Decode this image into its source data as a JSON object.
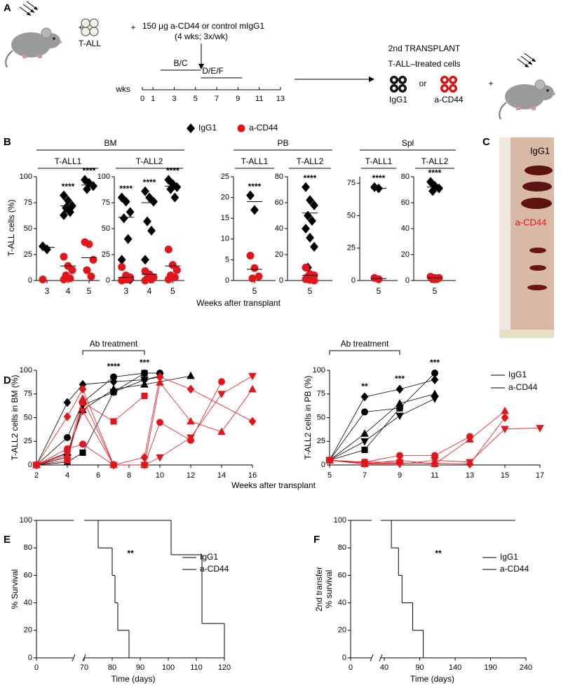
{
  "panel_labels": [
    "A",
    "B",
    "C",
    "D",
    "E",
    "F"
  ],
  "schematic": {
    "plus": "+",
    "cells_label": "T-ALL",
    "treatment": "150 μg a-CD44 or control mIgG1",
    "schedule": "(4 wks; 3x/wk)",
    "bars": [
      {
        "label": "B/C",
        "weeks": [
          1.7,
          5.5
        ]
      },
      {
        "label": "D/E/F",
        "weeks": [
          5.5,
          9.4
        ]
      }
    ],
    "timeline_unit": "wks",
    "timeline_ticks": [
      0,
      1,
      3,
      5,
      7,
      9,
      11,
      13
    ],
    "transplant_title": "2nd TRANSPLANT",
    "transplant_subtitle": "T-ALL–treated cells",
    "option_1": "IgG1",
    "or": "or",
    "option_2": "a-CD44"
  },
  "photo": {
    "label_1": "IgG1",
    "label_2": "a-CD44"
  },
  "chart_data": [
    {
      "type": "strip",
      "ylabel": "T-ALL cells (%)",
      "xlabel": "Weeks after transplant",
      "series": [
        {
          "name": "IgG1",
          "color": "#000000",
          "marker": "diamond"
        },
        {
          "name": "a-CD44",
          "color": "#e3151b",
          "marker": "circle"
        }
      ],
      "groups": [
        {
          "name": "BM",
          "panels": [
            {
              "title": "T-ALL1",
              "categories": [
                3,
                4,
                5
              ],
              "ylim": [
                0,
                100
              ],
              "yticks": [
                0,
                25,
                50,
                75,
                100
              ],
              "values": [
                [
                  [
                    33,
                    30
                  ],
                  [
                    82,
                    77,
                    72,
                    70,
                    66,
                    63
                  ],
                  [
                    97,
                    94,
                    91,
                    88
                  ]
                ],
                [
                  [
                    1
                  ],
                  [
                    23,
                    14,
                    10,
                    5,
                    2,
                    1
                  ],
                  [
                    37,
                    35,
                    20,
                    10,
                    4
                  ]
                ]
              ],
              "means": [
                [
                  32,
                  72,
                  92
                ],
                [
                  null,
                  14,
                  22
                ]
              ],
              "annotations": [
                null,
                "****",
                "****"
              ]
            },
            {
              "title": "T-ALL2",
              "categories": [
                3,
                4,
                5
              ],
              "ylim": [
                0,
                100
              ],
              "yticks": [
                0,
                25,
                50,
                75,
                100
              ],
              "values": [
                [
                  [
                    80,
                    76,
                    66,
                    60,
                    40,
                    20,
                    3,
                    1
                  ],
                  [
                    86,
                    80,
                    76,
                    57,
                    48,
                    20,
                    3
                  ],
                  [
                    97,
                    93,
                    90,
                    88,
                    80
                  ]
                ],
                [
                  [
                    13,
                    5,
                    3,
                    1,
                    1,
                    0
                  ],
                  [
                    9,
                    6,
                    3,
                    2,
                    1,
                    0
                  ],
                  [
                    30,
                    15,
                    10,
                    5,
                    3,
                    1
                  ]
                ]
              ],
              "means": [
                [
                  61,
                  75,
                  91
                ],
                [
                  3,
                  6,
                  14
                ]
              ],
              "annotations": [
                "****",
                "****",
                "****"
              ]
            }
          ]
        },
        {
          "name": "PB",
          "panels": [
            {
              "title": "T-ALL1",
              "categories": [
                5
              ],
              "ylim": [
                0,
                25
              ],
              "yticks": [
                0,
                5,
                10,
                15,
                20,
                25
              ],
              "values": [
                [
                  [
                    20.5,
                    17
                  ]
                ],
                [
                  [
                    6,
                    3,
                    1,
                    0.5
                  ]
                ]
              ],
              "means": [
                [
                  19
                ],
                [
                  2.7
                ]
              ],
              "annotations": [
                "****"
              ]
            },
            {
              "title": "T-ALL2",
              "categories": [
                5
              ],
              "ylim": [
                0,
                80
              ],
              "yticks": [
                0,
                20,
                40,
                60,
                80
              ],
              "values": [
                [
                  [
                    72,
                    62,
                    58,
                    50,
                    46,
                    40,
                    33,
                    26,
                    10
                  ]
                ],
                [
                  [
                    10,
                    5,
                    4,
                    3,
                    2,
                    1,
                    0.5,
                    0
                  ]
                ]
              ],
              "means": [
                [
                  52
                ],
                [
                  4
                ]
              ],
              "annotations": [
                "****"
              ]
            }
          ]
        },
        {
          "name": "Spl",
          "panels": [
            {
              "title": "T-ALL1",
              "categories": [
                5
              ],
              "ylim": [
                0,
                80
              ],
              "yticks": [
                0,
                25,
                50,
                75
              ],
              "values": [
                [
                  [
                    72,
                    71
                  ]
                ],
                [
                  [
                    2,
                    1
                  ]
                ]
              ],
              "means": [
                [
                  71
                ],
                [
                  1.5
                ]
              ],
              "annotations": [
                "****"
              ]
            },
            {
              "title": "T-ALL2",
              "categories": [
                5
              ],
              "ylim": [
                0,
                80
              ],
              "yticks": [
                0,
                20,
                40,
                60,
                80
              ],
              "values": [
                [
                  [
                    76,
                    73,
                    71,
                    69
                  ]
                ],
                [
                  [
                    3,
                    2,
                    2,
                    1,
                    1
                  ]
                ]
              ],
              "means": [
                [
                  72
                ],
                [
                  2
                ]
              ],
              "annotations": [
                "****"
              ]
            }
          ]
        }
      ]
    },
    {
      "type": "line",
      "ylabel": "T-ALL2 cells in BM (%)",
      "xlabel": "Weeks after transplant",
      "xlim": [
        2,
        16
      ],
      "xticks": [
        2,
        4,
        6,
        8,
        10,
        12,
        14,
        16
      ],
      "ylim": [
        0,
        100
      ],
      "yticks": [
        0,
        25,
        50,
        75,
        100
      ],
      "bracket": {
        "label": "Ab treatment",
        "x": [
          5,
          9
        ]
      },
      "annotations": [
        {
          "x": 7,
          "label": "****"
        },
        {
          "x": 9,
          "label": "***"
        }
      ],
      "lines": [
        {
          "color": "#000000",
          "marker": "diamond",
          "x": [
            2,
            4,
            5,
            7,
            9,
            10
          ],
          "values": [
            0,
            66,
            85,
            88,
            90,
            93
          ]
        },
        {
          "color": "#000000",
          "marker": "circle",
          "x": [
            2,
            4,
            5,
            7,
            9,
            10
          ],
          "values": [
            0,
            29,
            66,
            93,
            97,
            97
          ]
        },
        {
          "color": "#000000",
          "marker": "square",
          "x": [
            2,
            4,
            5,
            7,
            9
          ],
          "values": [
            0,
            3,
            13,
            77,
            97
          ]
        },
        {
          "color": "#000000",
          "marker": "triangle",
          "x": [
            2,
            4,
            5,
            7,
            9,
            12
          ],
          "values": [
            0,
            13,
            58,
            80,
            85,
            94
          ]
        },
        {
          "color": "#000000",
          "marker": "triangle-down",
          "x": [
            2,
            4,
            5,
            7,
            9,
            10
          ],
          "values": [
            0,
            8,
            63,
            77,
            90,
            94
          ]
        },
        {
          "color": "#e3151b",
          "marker": "diamond",
          "x": [
            2,
            4,
            5,
            7,
            9,
            10,
            12,
            16
          ],
          "values": [
            0,
            51,
            80,
            0,
            8,
            93,
            80,
            46
          ]
        },
        {
          "color": "#e3151b",
          "marker": "circle",
          "x": [
            2,
            4,
            5,
            7,
            9,
            10,
            12,
            14
          ],
          "values": [
            0,
            17,
            22,
            0,
            0,
            45,
            26,
            88
          ]
        },
        {
          "color": "#e3151b",
          "marker": "square",
          "x": [
            2,
            4,
            5,
            7,
            9
          ],
          "values": [
            0,
            5,
            66,
            46,
            73
          ]
        },
        {
          "color": "#e3151b",
          "marker": "triangle",
          "x": [
            2,
            4,
            5,
            7,
            9,
            10,
            12,
            14,
            16
          ],
          "values": [
            0,
            10,
            70,
            0,
            0,
            87,
            46,
            35,
            80
          ]
        },
        {
          "color": "#e3151b",
          "marker": "triangle-down",
          "x": [
            2,
            4,
            5,
            7,
            9,
            10,
            12,
            14,
            16
          ],
          "values": [
            0,
            12,
            57,
            0,
            0,
            8,
            29,
            75,
            94
          ]
        }
      ]
    },
    {
      "type": "line",
      "ylabel": "T-ALL2 cells in PB (%)",
      "xlim": [
        5,
        17
      ],
      "xticks": [
        5,
        7,
        9,
        11,
        13,
        15,
        17
      ],
      "ylim": [
        0,
        100
      ],
      "yticks": [
        0,
        25,
        50,
        75,
        100
      ],
      "bracket": {
        "label": "Ab treatment",
        "x": [
          5,
          9
        ]
      },
      "annotations": [
        {
          "x": 7,
          "label": "**"
        },
        {
          "x": 9,
          "label": "***"
        },
        {
          "x": 11,
          "label": "***"
        }
      ],
      "series": [
        {
          "name": "IgG1",
          "color": "#000000"
        },
        {
          "name": "a-CD44",
          "color": "#e3151b"
        }
      ],
      "legend": "upper right",
      "lines": [
        {
          "color": "#000000",
          "marker": "diamond",
          "x": [
            5,
            7,
            9,
            11
          ],
          "values": [
            5,
            72,
            80,
            90
          ]
        },
        {
          "color": "#000000",
          "marker": "circle",
          "x": [
            5,
            7,
            9,
            11
          ],
          "values": [
            5,
            56,
            60,
            97
          ]
        },
        {
          "color": "#000000",
          "marker": "triangle",
          "x": [
            5,
            7,
            9,
            11
          ],
          "values": [
            5,
            33,
            65,
            75
          ]
        },
        {
          "color": "#000000",
          "marker": "triangle-down",
          "x": [
            5,
            7,
            9,
            11
          ],
          "values": [
            5,
            25,
            52,
            70
          ]
        },
        {
          "color": "#000000",
          "marker": "square",
          "x": [
            5,
            7,
            9
          ],
          "values": [
            5,
            16,
            60
          ]
        },
        {
          "color": "#e3151b",
          "marker": "diamond",
          "x": [
            5,
            7,
            9,
            11,
            13,
            15
          ],
          "values": [
            5,
            2,
            2,
            2,
            1,
            50
          ]
        },
        {
          "color": "#e3151b",
          "marker": "circle",
          "x": [
            5,
            7,
            9,
            11,
            13
          ],
          "values": [
            5,
            3,
            10,
            10,
            30
          ]
        },
        {
          "color": "#e3151b",
          "marker": "triangle",
          "x": [
            5,
            7,
            9,
            11,
            13,
            15
          ],
          "values": [
            5,
            1,
            5,
            1,
            27,
            57
          ]
        },
        {
          "color": "#e3151b",
          "marker": "triangle-down",
          "x": [
            5,
            7,
            9,
            11,
            13,
            15,
            17
          ],
          "values": [
            5,
            1,
            1,
            5,
            3,
            38,
            39
          ]
        },
        {
          "color": "#e3151b",
          "marker": "square",
          "x": [
            5,
            7,
            9
          ],
          "values": [
            5,
            3,
            3
          ]
        }
      ]
    },
    {
      "type": "survival",
      "ylabel": "% Survival",
      "xlabel": "Time (days)",
      "xlim": [
        0,
        120
      ],
      "xbreak": [
        10,
        70
      ],
      "xticks": [
        0,
        70,
        80,
        90,
        100,
        110,
        120
      ],
      "ylim": [
        0,
        100
      ],
      "yticks": [
        0,
        20,
        40,
        60,
        80,
        100
      ],
      "annotation": "**",
      "legend": "right",
      "series": [
        {
          "name": "IgG1",
          "color": "#000000",
          "x": [
            0,
            75,
            80,
            81,
            82,
            86
          ],
          "values": [
            100,
            80,
            60,
            40,
            20,
            0
          ]
        },
        {
          "name": "a-CD44",
          "color": "#e3151b",
          "x": [
            0,
            101,
            112,
            120
          ],
          "values": [
            100,
            75,
            25,
            0
          ]
        }
      ]
    },
    {
      "type": "survival",
      "ylabel": [
        "2nd transfer",
        "% survival"
      ],
      "xlabel": "Time (days)",
      "xlim": [
        0,
        240
      ],
      "xbreak": [
        20,
        35
      ],
      "xticks": [
        0,
        40,
        90,
        140,
        190,
        240
      ],
      "ylim": [
        0,
        100
      ],
      "yticks": [
        0,
        20,
        40,
        60,
        80,
        100
      ],
      "annotation": "**",
      "legend": "right",
      "series": [
        {
          "name": "IgG1",
          "color": "#000000",
          "x": [
            0,
            50,
            60,
            65,
            80,
            95
          ],
          "values": [
            100,
            80,
            60,
            40,
            20,
            0
          ]
        },
        {
          "name": "a-CD44",
          "color": "#e3151b",
          "x": [
            0,
            225
          ],
          "values": [
            100,
            100
          ]
        }
      ]
    }
  ]
}
